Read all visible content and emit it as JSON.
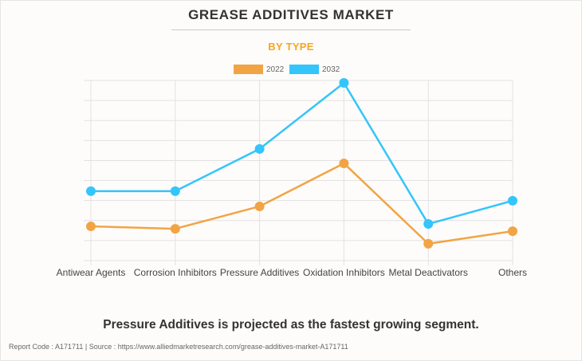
{
  "header": {
    "title": "GREASE ADDITIVES MARKET",
    "subtitle": "BY TYPE"
  },
  "legend": [
    {
      "label": "2022",
      "color": "#f2a444"
    },
    {
      "label": "2032",
      "color": "#33c5fc"
    }
  ],
  "caption": "Pressure Additives is projected as the fastest growing segment.",
  "footer": "Report Code : A171711  |  Source : https://www.alliedmarketresearch.com/grease-additives-market-A171711",
  "chart_data": {
    "type": "line",
    "title": "GREASE ADDITIVES MARKET",
    "subtitle": "BY TYPE",
    "xlabel": "",
    "ylabel": "",
    "categories": [
      "Antiwear Agents",
      "Corrosion Inhibitors",
      "Pressure Additives",
      "Oxidation Inhibitors",
      "Metal Deactivators",
      "Others"
    ],
    "series": [
      {
        "name": "2022",
        "color": "#f2a444",
        "values": [
          1.71,
          1.59,
          2.71,
          4.86,
          0.84,
          1.47
        ]
      },
      {
        "name": "2032",
        "color": "#33c5fc",
        "values": [
          3.47,
          3.47,
          5.58,
          8.88,
          1.83,
          2.99
        ]
      }
    ],
    "ylim": [
      0,
      9
    ],
    "y_ticks_shown": false,
    "grid": true,
    "legend_position": "top-center",
    "note": "Y-axis unlabeled; values expressed in gridline units (relative scale)"
  }
}
